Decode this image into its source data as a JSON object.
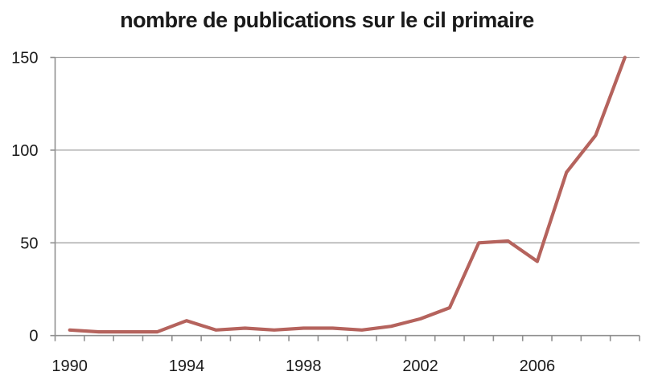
{
  "chart_data": {
    "type": "line",
    "title": "nombre de publications sur le cil primaire",
    "x": [
      1990,
      1991,
      1992,
      1993,
      1994,
      1995,
      1996,
      1997,
      1998,
      1999,
      2000,
      2001,
      2002,
      2003,
      2004,
      2005,
      2006,
      2007,
      2008,
      2009
    ],
    "values": [
      3,
      2,
      2,
      2,
      8,
      3,
      4,
      3,
      4,
      4,
      3,
      5,
      9,
      15,
      50,
      51,
      40,
      88,
      108,
      150
    ],
    "xlabel": "",
    "ylabel": "",
    "ylim": [
      0,
      150
    ],
    "yticks": [
      0,
      50,
      100,
      150
    ],
    "xtick_labels": [
      "1990",
      "1994",
      "1998",
      "2002",
      "2006"
    ],
    "grid": "horizontal-only",
    "legend_position": "none",
    "line_color": "#b5635d",
    "grid_color": "#a3a3a3",
    "axis_color": "#8f8f8f",
    "text_color": "#1a1a1a"
  }
}
